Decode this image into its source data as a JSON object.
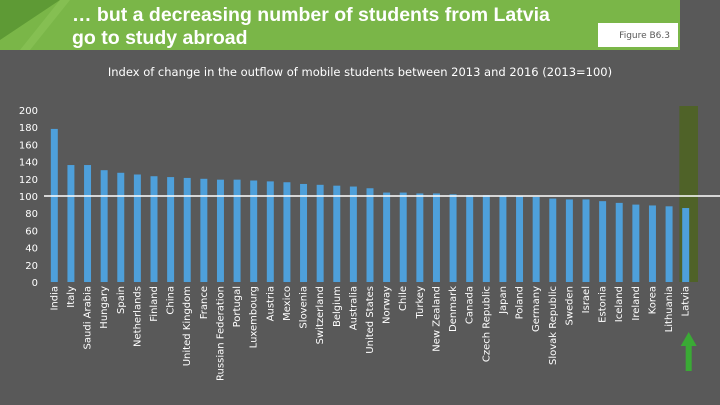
{
  "header": {
    "title_line1": "… but a decreasing number of students from Latvia",
    "title_line2": "go to study abroad",
    "figure_label": "Figure B6.3"
  },
  "colors": {
    "background": "#595959",
    "bar": "#4ea0db",
    "header_band": "#7ab648",
    "highlight_column": "#4f6228",
    "baseline": "#ffffff",
    "arrow": "#3aaa35"
  },
  "chart_data": {
    "type": "bar",
    "title": "Index of change in the outflow of mobile students between 2013 and 2016 (2013=100)",
    "ylim": [
      0,
      200
    ],
    "yticks": [
      0,
      20,
      40,
      60,
      80,
      100,
      120,
      140,
      160,
      180,
      200
    ],
    "reference_line": 100,
    "highlight": "Latvia",
    "categories": [
      "India",
      "Italy",
      "Saudi Arabia",
      "Hungary",
      "Spain",
      "Netherlands",
      "Finland",
      "China",
      "United Kingdom",
      "France",
      "Russian Federation",
      "Portugal",
      "Luxembourg",
      "Austria",
      "Mexico",
      "Slovenia",
      "Switzerland",
      "Belgium",
      "Australia",
      "United States",
      "Norway",
      "Chile",
      "Turkey",
      "New Zealand",
      "Denmark",
      "Canada",
      "Czech Republic",
      "Japan",
      "Poland",
      "Germany",
      "Slovak Republic",
      "Sweden",
      "Israel",
      "Estonia",
      "Iceland",
      "Ireland",
      "Korea",
      "Lithuania",
      "Latvia"
    ],
    "values": [
      178,
      136,
      136,
      130,
      127,
      125,
      123,
      122,
      121,
      120,
      119,
      119,
      118,
      117,
      116,
      114,
      113,
      112,
      111,
      109,
      104,
      104,
      103,
      103,
      102,
      101,
      101,
      100,
      100,
      99,
      97,
      96,
      96,
      94,
      92,
      90,
      89,
      88,
      86
    ],
    "grid": false
  },
  "icons": {
    "trend_arrow": "up-arrow-icon"
  }
}
